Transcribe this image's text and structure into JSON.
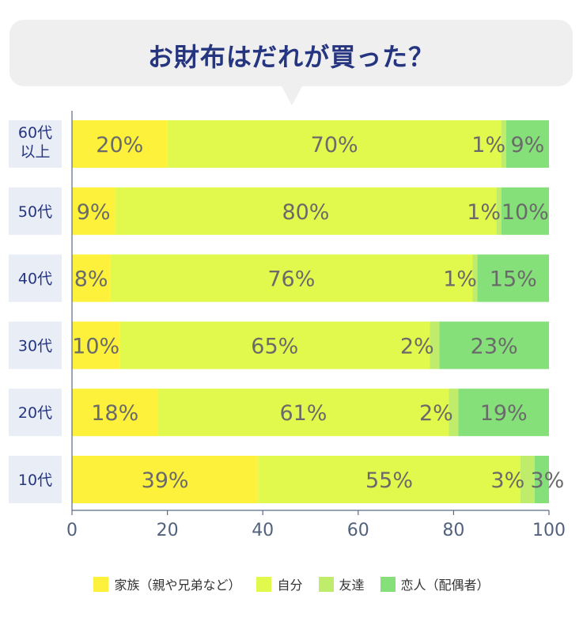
{
  "title": "お財布はだれが買った？",
  "chart_data": {
    "type": "bar",
    "orientation": "horizontal",
    "stacked": true,
    "categories": [
      [
        "60代",
        "以上"
      ],
      [
        "50代"
      ],
      [
        "40代"
      ],
      [
        "30代"
      ],
      [
        "20代"
      ],
      [
        "10代"
      ]
    ],
    "series": [
      {
        "name": "家族（親や兄弟など）",
        "color": "#fdf13c",
        "values": [
          20,
          9,
          8,
          10,
          18,
          39
        ]
      },
      {
        "name": "自分",
        "color": "#e1f84c",
        "values": [
          70,
          80,
          76,
          65,
          61,
          55
        ]
      },
      {
        "name": "友達",
        "color": "#bfec6a",
        "values": [
          1,
          1,
          1,
          2,
          2,
          3
        ]
      },
      {
        "name": "恋人（配偶者）",
        "color": "#86e07a",
        "values": [
          9,
          10,
          15,
          23,
          19,
          3
        ]
      }
    ],
    "data_labels": [
      [
        "20%",
        "70%",
        "1%",
        "9%"
      ],
      [
        "9%",
        "80%",
        "1%",
        "10%"
      ],
      [
        "8%",
        "76%",
        "1%",
        "15%"
      ],
      [
        "10%",
        "65%",
        "2%",
        "23%"
      ],
      [
        "18%",
        "61%",
        "2%",
        "19%"
      ],
      [
        "39%",
        "55%",
        "3%",
        "3%"
      ]
    ],
    "xlim": [
      0,
      100
    ],
    "xticks": [
      0,
      20,
      40,
      60,
      80,
      100
    ],
    "grid": false,
    "legend_position": "bottom"
  }
}
